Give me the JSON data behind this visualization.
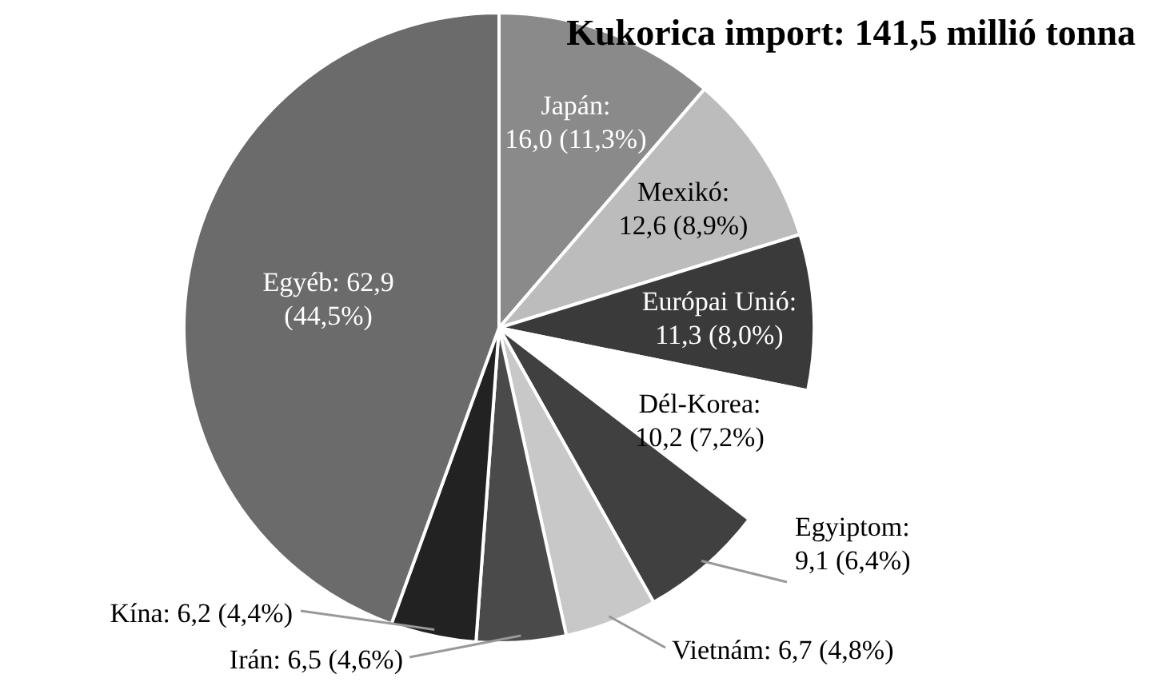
{
  "chart_data": {
    "type": "pie",
    "title": "Kukorica import: 141,5 millió tonna",
    "categories": [
      "Japán",
      "Mexikó",
      "Európai Unió",
      "Dél-Korea",
      "Egyiptom",
      "Vietnám",
      "Irán",
      "Kína",
      "Egyéb"
    ],
    "values": [
      16.0,
      12.6,
      11.3,
      10.2,
      9.1,
      6.7,
      6.5,
      6.2,
      62.9
    ],
    "value_labels": [
      ": 16,0 (11,3%)",
      ": 12,6 (8,9%)",
      ": 11,3 (8,0%)",
      ": 10,2 (7,2%)",
      ": 9,1 (6,4%)",
      ": 6,7 (4,8%)",
      ": 6,5 (4,6%)",
      ": 6,2 (4,4%)",
      ": 62,9 (44,5%)"
    ],
    "colors": [
      "#8a8a8a",
      "#bcbcbc",
      "#3a3a3a",
      "#ffffff",
      "#404040",
      "#c8c8c8",
      "#4a4a4a",
      "#222222",
      "#6b6b6b"
    ],
    "legend": false
  }
}
